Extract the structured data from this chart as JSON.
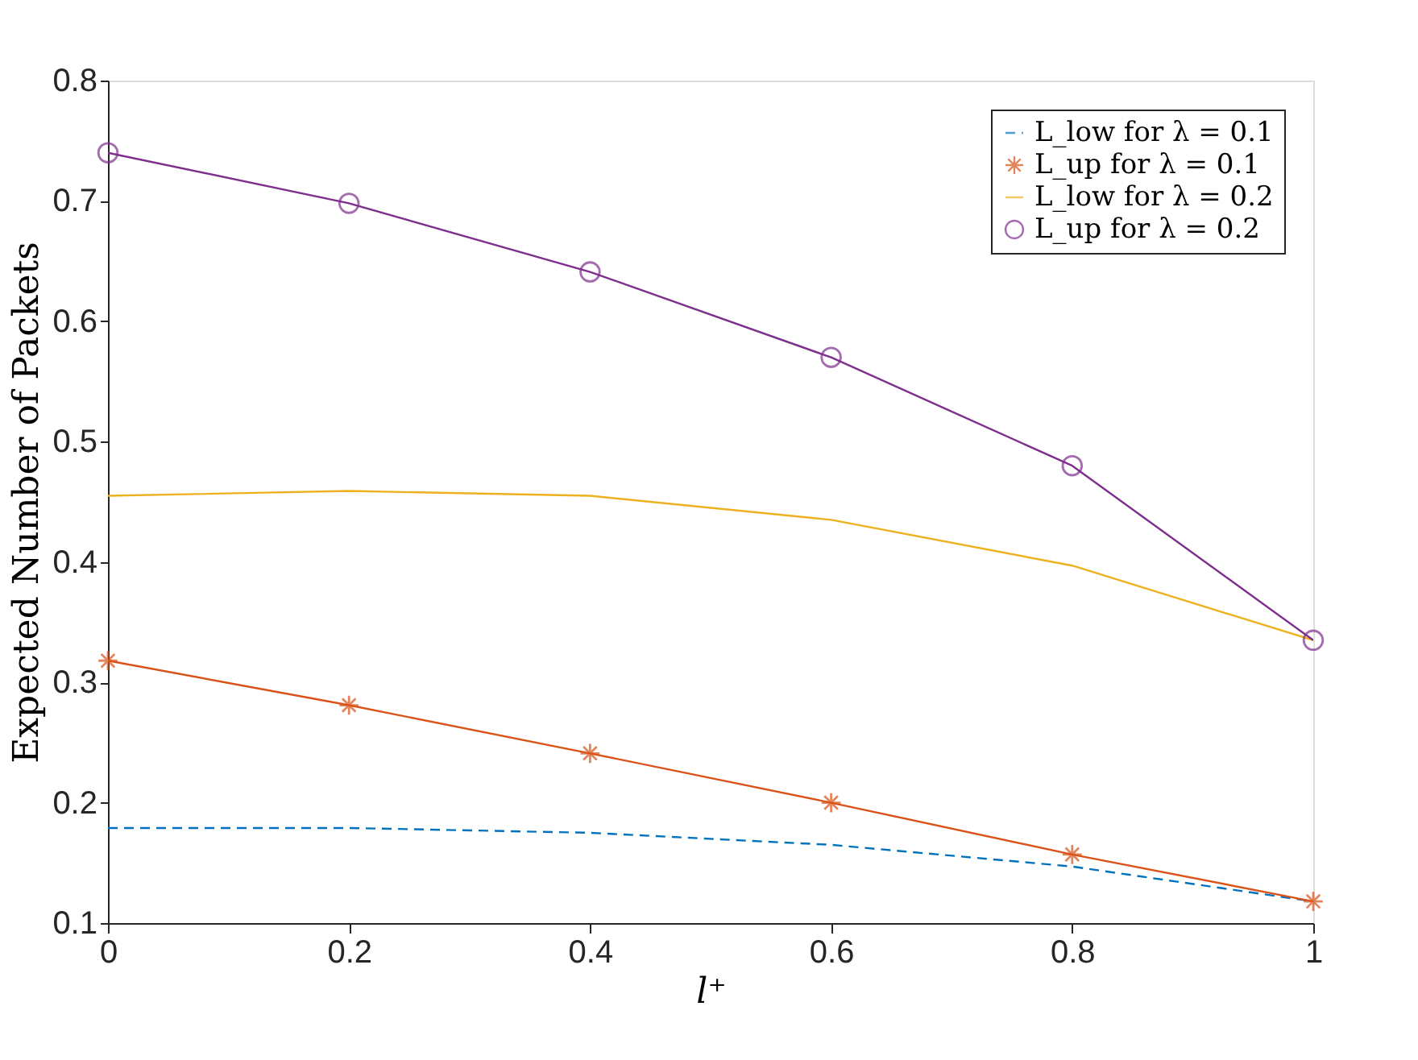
{
  "chart_data": {
    "type": "line",
    "xlabel": "l⁺",
    "ylabel": "Expected Number of Packets",
    "x": [
      0,
      0.2,
      0.4,
      0.6,
      0.8,
      1
    ],
    "series": [
      {
        "name": "L_low for λ = 0.1",
        "color": "#0072bd",
        "line_style": "dashed",
        "marker": "none",
        "values": [
          0.179,
          0.179,
          0.175,
          0.165,
          0.147,
          0.118
        ]
      },
      {
        "name": "L_up for λ = 0.1",
        "color": "#d95319",
        "line_style": "solid",
        "marker": "cross",
        "values": [
          0.318,
          0.281,
          0.241,
          0.2,
          0.157,
          0.118
        ]
      },
      {
        "name": "L_low for λ = 0.2",
        "color": "#edb120",
        "line_style": "solid",
        "marker": "none",
        "values": [
          0.455,
          0.459,
          0.455,
          0.435,
          0.397,
          0.335
        ]
      },
      {
        "name": "L_up for λ = 0.2",
        "color": "#7e2f8e",
        "line_style": "solid",
        "marker": "circle",
        "values": [
          0.74,
          0.698,
          0.641,
          0.57,
          0.48,
          0.335
        ]
      }
    ],
    "xlim": [
      0,
      1
    ],
    "xticks": [
      0,
      0.2,
      0.4,
      0.6,
      0.8,
      1
    ],
    "ylim": [
      0.1,
      0.8
    ],
    "yticks": [
      0.1,
      0.2,
      0.3,
      0.4,
      0.5,
      0.6,
      0.7,
      0.8
    ],
    "grid": false,
    "legend": "top right"
  }
}
